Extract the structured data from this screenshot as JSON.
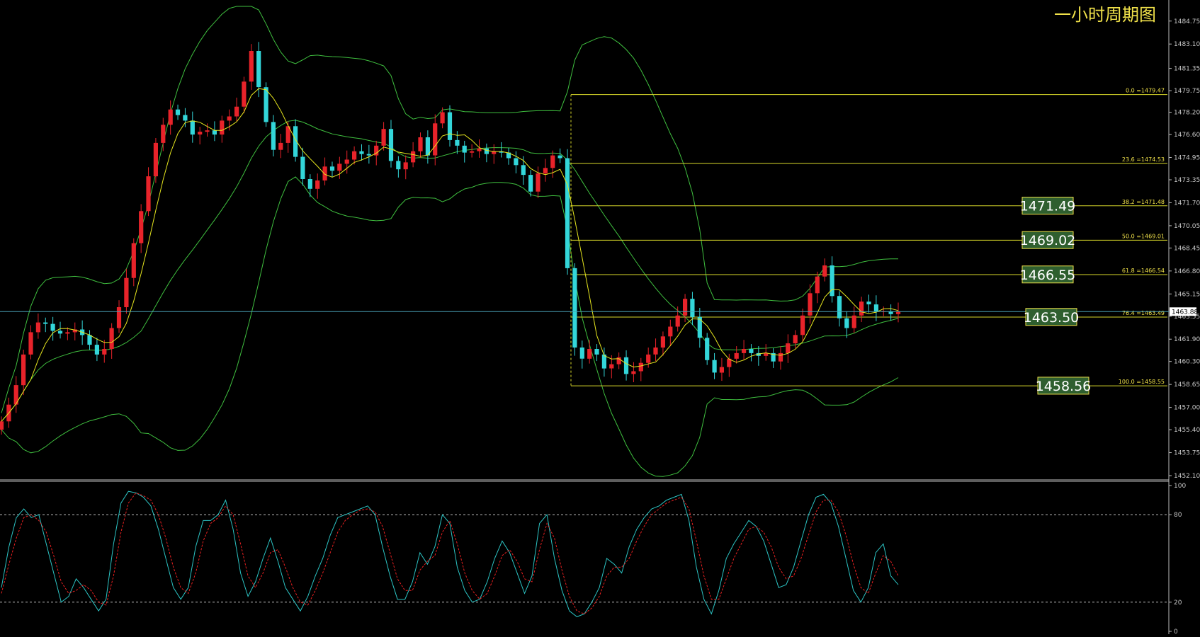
{
  "title": "一小时周期图",
  "colors": {
    "background": "#000000",
    "bull_candle": "#e8232a",
    "bear_candle": "#33d6d9",
    "band": "#3fbf3f",
    "ma": "#e6e61e",
    "fib_line": "#d9d92a",
    "label_border": "#f0e14a",
    "label_bg": "#2f5f2f",
    "stoch_k": "#2cc4c4",
    "stoch_d": "#e82020",
    "current_price_line": "#4aa3b8"
  },
  "chart_data": [
    {
      "type": "candlestick",
      "title": "一小时周期图",
      "ylim": [
        1452.1,
        1485.5
      ],
      "y_ticks": [
        "1484.75",
        "1483.10",
        "1481.35",
        "1479.75",
        "1478.20",
        "1476.60",
        "1474.95",
        "1473.35",
        "1471.70",
        "1470.05",
        "1468.45",
        "1466.80",
        "1465.15",
        "1463.55",
        "1461.90",
        "1460.30",
        "1458.65",
        "1457.00",
        "1455.40",
        "1453.75",
        "1452.10"
      ],
      "current_price": "1463.88",
      "fibonacci": [
        {
          "level": "0.0",
          "price": 1479.47,
          "text": "0.0  =1479.47"
        },
        {
          "level": "23.6",
          "price": 1474.53,
          "text": "23.6  =1474.53"
        },
        {
          "level": "38.2",
          "price": 1471.48,
          "text": "38.2  =1471.48"
        },
        {
          "level": "50.0",
          "price": 1469.01,
          "text": "50.0  =1469.01"
        },
        {
          "level": "61.8",
          "price": 1466.54,
          "text": "61.8  =1466.54"
        },
        {
          "level": "76.4",
          "price": 1463.49,
          "text": "76.4  =1463.49"
        },
        {
          "level": "100.0",
          "price": 1458.55,
          "text": "100.0  =1458.55"
        }
      ],
      "key_levels": [
        {
          "price": 1471.49,
          "text": "1471.49"
        },
        {
          "price": 1469.02,
          "text": "1469.02"
        },
        {
          "price": 1466.55,
          "text": "1466.55"
        },
        {
          "price": 1463.5,
          "text": "1463.50"
        },
        {
          "price": 1458.56,
          "text": "1458.56"
        }
      ],
      "closes": [
        1456.0,
        1457.2,
        1458.6,
        1460.8,
        1462.4,
        1463.1,
        1463.0,
        1462.5,
        1462.3,
        1462.4,
        1462.6,
        1462.2,
        1461.5,
        1460.8,
        1461.2,
        1462.7,
        1464.2,
        1466.3,
        1468.8,
        1471.1,
        1473.6,
        1476.0,
        1477.3,
        1478.4,
        1478.0,
        1477.6,
        1476.6,
        1476.8,
        1476.9,
        1476.6,
        1477.6,
        1477.9,
        1478.6,
        1480.4,
        1482.6,
        1480.0,
        1477.5,
        1475.5,
        1476.0,
        1477.2,
        1475.0,
        1473.4,
        1472.7,
        1473.3,
        1474.3,
        1474.0,
        1474.5,
        1474.8,
        1475.4,
        1475.2,
        1475.1,
        1475.8,
        1477.0,
        1474.7,
        1474.1,
        1474.6,
        1475.4,
        1476.4,
        1475.1,
        1477.4,
        1478.2,
        1476.2,
        1475.8,
        1475.3,
        1475.4,
        1475.6,
        1475.2,
        1475.4,
        1475.3,
        1474.9,
        1474.4,
        1473.7,
        1472.5,
        1473.8,
        1474.2,
        1475.1,
        1474.9,
        1467.0,
        1461.3,
        1460.5,
        1461.2,
        1460.8,
        1459.8,
        1460.1,
        1460.6,
        1459.4,
        1459.6,
        1460.2,
        1460.8,
        1461.3,
        1462.1,
        1462.8,
        1463.6,
        1464.8,
        1463.5,
        1462.0,
        1460.4,
        1459.5,
        1459.9,
        1460.5,
        1460.9,
        1461.2,
        1460.9,
        1460.7,
        1460.9,
        1460.3,
        1460.9,
        1461.6,
        1462.2,
        1463.6,
        1465.2,
        1466.4,
        1467.2,
        1465.0,
        1463.4,
        1462.7,
        1463.6,
        1464.6,
        1464.4,
        1463.9,
        1463.9,
        1463.7,
        1463.88
      ],
      "stochastic": {
        "levels": [
          80,
          20
        ],
        "y_ticks": [
          "100",
          "80",
          "20",
          "0"
        ],
        "k": [
          30,
          58,
          78,
          84,
          78,
          80,
          60,
          40,
          20,
          24,
          36,
          30,
          22,
          14,
          22,
          60,
          88,
          96,
          95,
          92,
          86,
          70,
          50,
          30,
          22,
          30,
          58,
          76,
          76,
          80,
          90,
          70,
          40,
          24,
          34,
          50,
          64,
          48,
          30,
          22,
          14,
          24,
          38,
          50,
          66,
          78,
          80,
          82,
          84,
          86,
          80,
          58,
          38,
          22,
          22,
          34,
          54,
          46,
          58,
          80,
          74,
          44,
          28,
          20,
          22,
          34,
          50,
          62,
          54,
          40,
          26,
          38,
          74,
          80,
          50,
          28,
          14,
          10,
          12,
          20,
          30,
          50,
          46,
          40,
          58,
          70,
          78,
          84,
          86,
          90,
          92,
          94,
          76,
          44,
          22,
          12,
          28,
          50,
          60,
          68,
          76,
          72,
          62,
          46,
          30,
          32,
          44,
          62,
          80,
          92,
          94,
          88,
          72,
          50,
          28,
          20,
          30,
          54,
          60,
          38,
          32
        ],
        "d": [
          26,
          46,
          64,
          78,
          80,
          76,
          68,
          52,
          34,
          26,
          28,
          32,
          28,
          20,
          18,
          38,
          68,
          88,
          95,
          93,
          90,
          80,
          64,
          44,
          30,
          26,
          40,
          62,
          74,
          78,
          86,
          80,
          60,
          38,
          30,
          40,
          54,
          56,
          44,
          30,
          20,
          18,
          28,
          40,
          54,
          68,
          76,
          80,
          83,
          84,
          82,
          72,
          54,
          36,
          28,
          28,
          42,
          48,
          52,
          68,
          76,
          60,
          40,
          28,
          22,
          26,
          38,
          52,
          56,
          48,
          36,
          34,
          56,
          74,
          64,
          42,
          24,
          14,
          12,
          16,
          24,
          38,
          44,
          44,
          50,
          62,
          72,
          80,
          84,
          88,
          90,
          92,
          84,
          62,
          38,
          22,
          22,
          36,
          50,
          60,
          70,
          72,
          68,
          58,
          44,
          36,
          38,
          50,
          66,
          82,
          90,
          90,
          82,
          66,
          46,
          30,
          26,
          40,
          52,
          48,
          38
        ]
      }
    }
  ]
}
